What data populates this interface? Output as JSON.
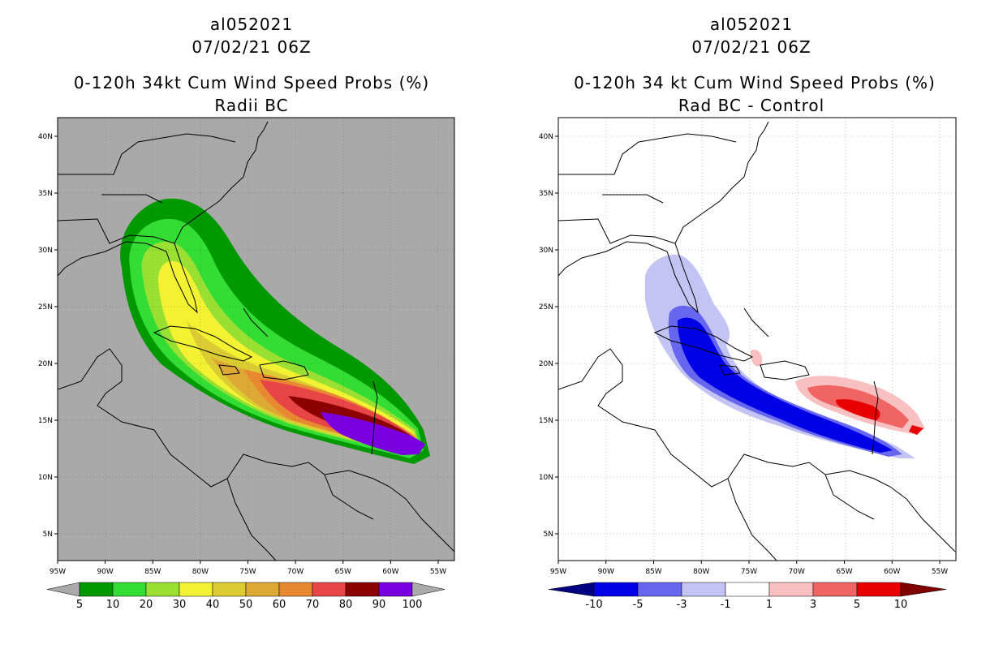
{
  "left": {
    "storm_id": "al052021",
    "datetime": "07/02/21 06Z",
    "title": "0-120h 34kt Cum Wind Speed Probs (%)",
    "subtitle": "Radii BC",
    "x_ticks": [
      "95W",
      "90W",
      "85W",
      "80W",
      "75W",
      "70W",
      "65W",
      "60W",
      "55W"
    ],
    "y_ticks": [
      "40N",
      "35N",
      "30N",
      "25N",
      "20N",
      "15N",
      "10N",
      "5N"
    ],
    "colorbar": {
      "labels": [
        "5",
        "10",
        "20",
        "30",
        "40",
        "50",
        "60",
        "70",
        "80",
        "90",
        "100"
      ],
      "colors": [
        "#009900",
        "#33dd33",
        "#99e033",
        "#f2f233",
        "#dccc33",
        "#dda833",
        "#e88830",
        "#e84646",
        "#8c0000",
        "#7a00e0"
      ]
    }
  },
  "right": {
    "storm_id": "al052021",
    "datetime": "07/02/21 06Z",
    "title": "0-120h 34 kt Cum Wind Speed Probs (%)",
    "subtitle": "Rad BC - Control",
    "x_ticks": [
      "95W",
      "90W",
      "85W",
      "80W",
      "75W",
      "70W",
      "65W",
      "60W",
      "55W"
    ],
    "y_ticks": [
      "40N",
      "35N",
      "30N",
      "25N",
      "20N",
      "15N",
      "10N",
      "5N"
    ],
    "colorbar": {
      "labels": [
        "-10",
        "-5",
        "-3",
        "-1",
        "1",
        "3",
        "5",
        "10"
      ],
      "colors": [
        "#0000e6",
        "#6666ee",
        "#c4c4f4",
        "#ffffff",
        "#f8c0c0",
        "#f06464",
        "#e80000"
      ],
      "end_low": "#000080",
      "end_high": "#800000"
    }
  }
}
